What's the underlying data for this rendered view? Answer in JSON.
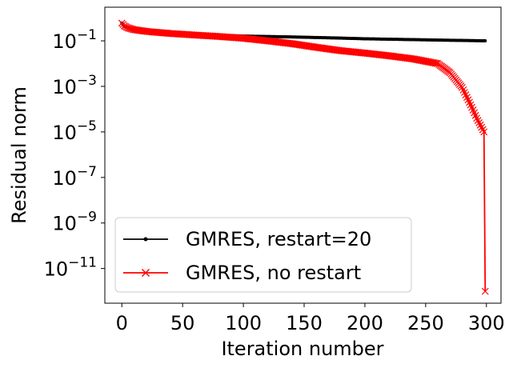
{
  "chart_data": {
    "type": "line",
    "title": "",
    "xlabel": "Iteration number",
    "ylabel": "Residual norm",
    "xlim": [
      -14,
      312
    ],
    "ylim": [
      3e-13,
      3
    ],
    "yscale": "log",
    "xticks": [
      0,
      50,
      100,
      150,
      200,
      250,
      300
    ],
    "xtick_labels": [
      "0",
      "50",
      "100",
      "150",
      "200",
      "250",
      "300"
    ],
    "yticks": [
      0.1,
      0.001,
      1e-05,
      1e-07,
      1e-09,
      1e-11
    ],
    "ytick_labels": [
      {
        "base": "10",
        "exp": "−1"
      },
      {
        "base": "10",
        "exp": "−3"
      },
      {
        "base": "10",
        "exp": "−5"
      },
      {
        "base": "10",
        "exp": "−7"
      },
      {
        "base": "10",
        "exp": "−9"
      },
      {
        "base": "10",
        "exp": "−11"
      }
    ],
    "grid": false,
    "legend_position": "lower-left",
    "series": [
      {
        "name": "GMRES, restart=20",
        "color": "#000000",
        "marker": "dot",
        "points": [
          [
            0,
            0.6
          ],
          [
            2,
            0.45
          ],
          [
            5,
            0.37
          ],
          [
            10,
            0.31
          ],
          [
            20,
            0.27
          ],
          [
            40,
            0.22
          ],
          [
            60,
            0.19
          ],
          [
            80,
            0.175
          ],
          [
            100,
            0.162
          ],
          [
            120,
            0.155
          ],
          [
            140,
            0.148
          ],
          [
            160,
            0.14
          ],
          [
            180,
            0.132
          ],
          [
            200,
            0.123
          ],
          [
            220,
            0.118
          ],
          [
            240,
            0.113
          ],
          [
            260,
            0.108
          ],
          [
            280,
            0.104
          ],
          [
            299,
            0.1
          ]
        ]
      },
      {
        "name": "GMRES, no restart",
        "color": "#ff0000",
        "marker": "x",
        "points": [
          [
            0,
            0.6
          ],
          [
            2,
            0.45
          ],
          [
            5,
            0.37
          ],
          [
            10,
            0.31
          ],
          [
            20,
            0.26
          ],
          [
            40,
            0.21
          ],
          [
            60,
            0.18
          ],
          [
            80,
            0.155
          ],
          [
            100,
            0.13
          ],
          [
            120,
            0.1
          ],
          [
            140,
            0.075
          ],
          [
            160,
            0.052
          ],
          [
            180,
            0.037
          ],
          [
            200,
            0.029
          ],
          [
            220,
            0.022
          ],
          [
            240,
            0.016
          ],
          [
            260,
            0.01
          ],
          [
            270,
            0.004
          ],
          [
            280,
            0.0009
          ],
          [
            288,
            0.00012
          ],
          [
            292,
            4e-05
          ],
          [
            295,
            2e-05
          ],
          [
            298,
            1e-05
          ],
          [
            299,
            1e-12
          ]
        ]
      }
    ]
  }
}
